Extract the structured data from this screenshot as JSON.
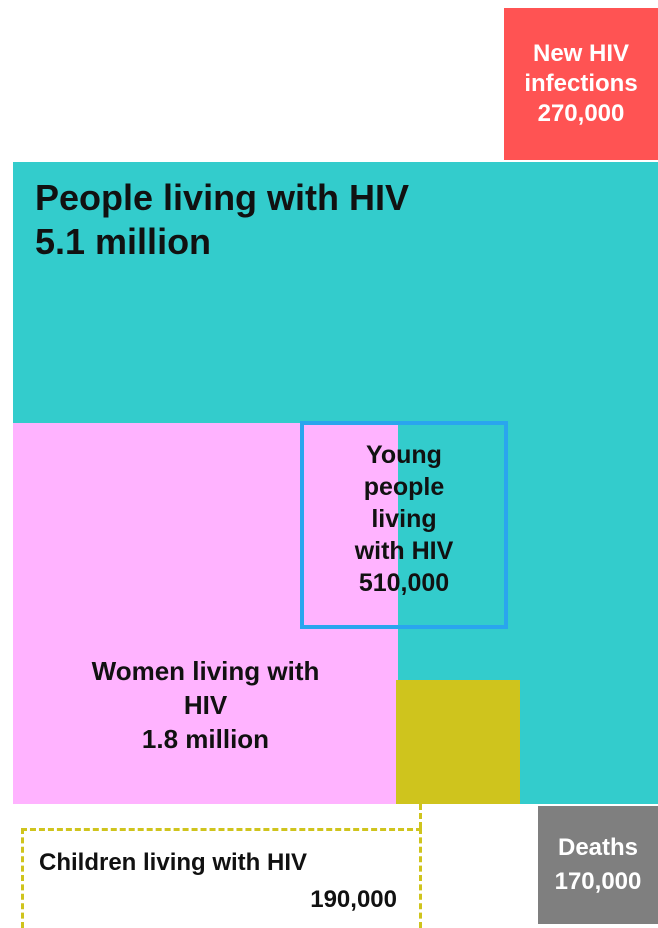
{
  "colors": {
    "new_infections": "#ff5353",
    "people_living": "#33cccc",
    "women": "#ffb3ff",
    "children": "#cfc41d",
    "young_people_outline": "#2aa5ee",
    "deaths": "#7f7f7f"
  },
  "chart_data": {
    "type": "proportional-area",
    "items": [
      {
        "key": "new_infections",
        "label_lines": [
          "New HIV",
          "infections"
        ],
        "value_text": "270,000",
        "value": 270000
      },
      {
        "key": "people_living",
        "label_lines": [
          "People living with HIV"
        ],
        "value_text": "5.1 million",
        "value": 5100000
      },
      {
        "key": "women",
        "label_lines": [
          "Women living with",
          "HIV"
        ],
        "value_text": "1.8 million",
        "value": 1800000
      },
      {
        "key": "young_people",
        "label_lines": [
          "Young",
          "people",
          "living",
          "with HIV"
        ],
        "value_text": "510,000",
        "value": 510000
      },
      {
        "key": "children",
        "label_lines": [
          "Children living with HIV"
        ],
        "value_text": "190,000",
        "value": 190000
      },
      {
        "key": "deaths",
        "label_lines": [
          "Deaths"
        ],
        "value_text": "170,000",
        "value": 170000
      }
    ]
  }
}
